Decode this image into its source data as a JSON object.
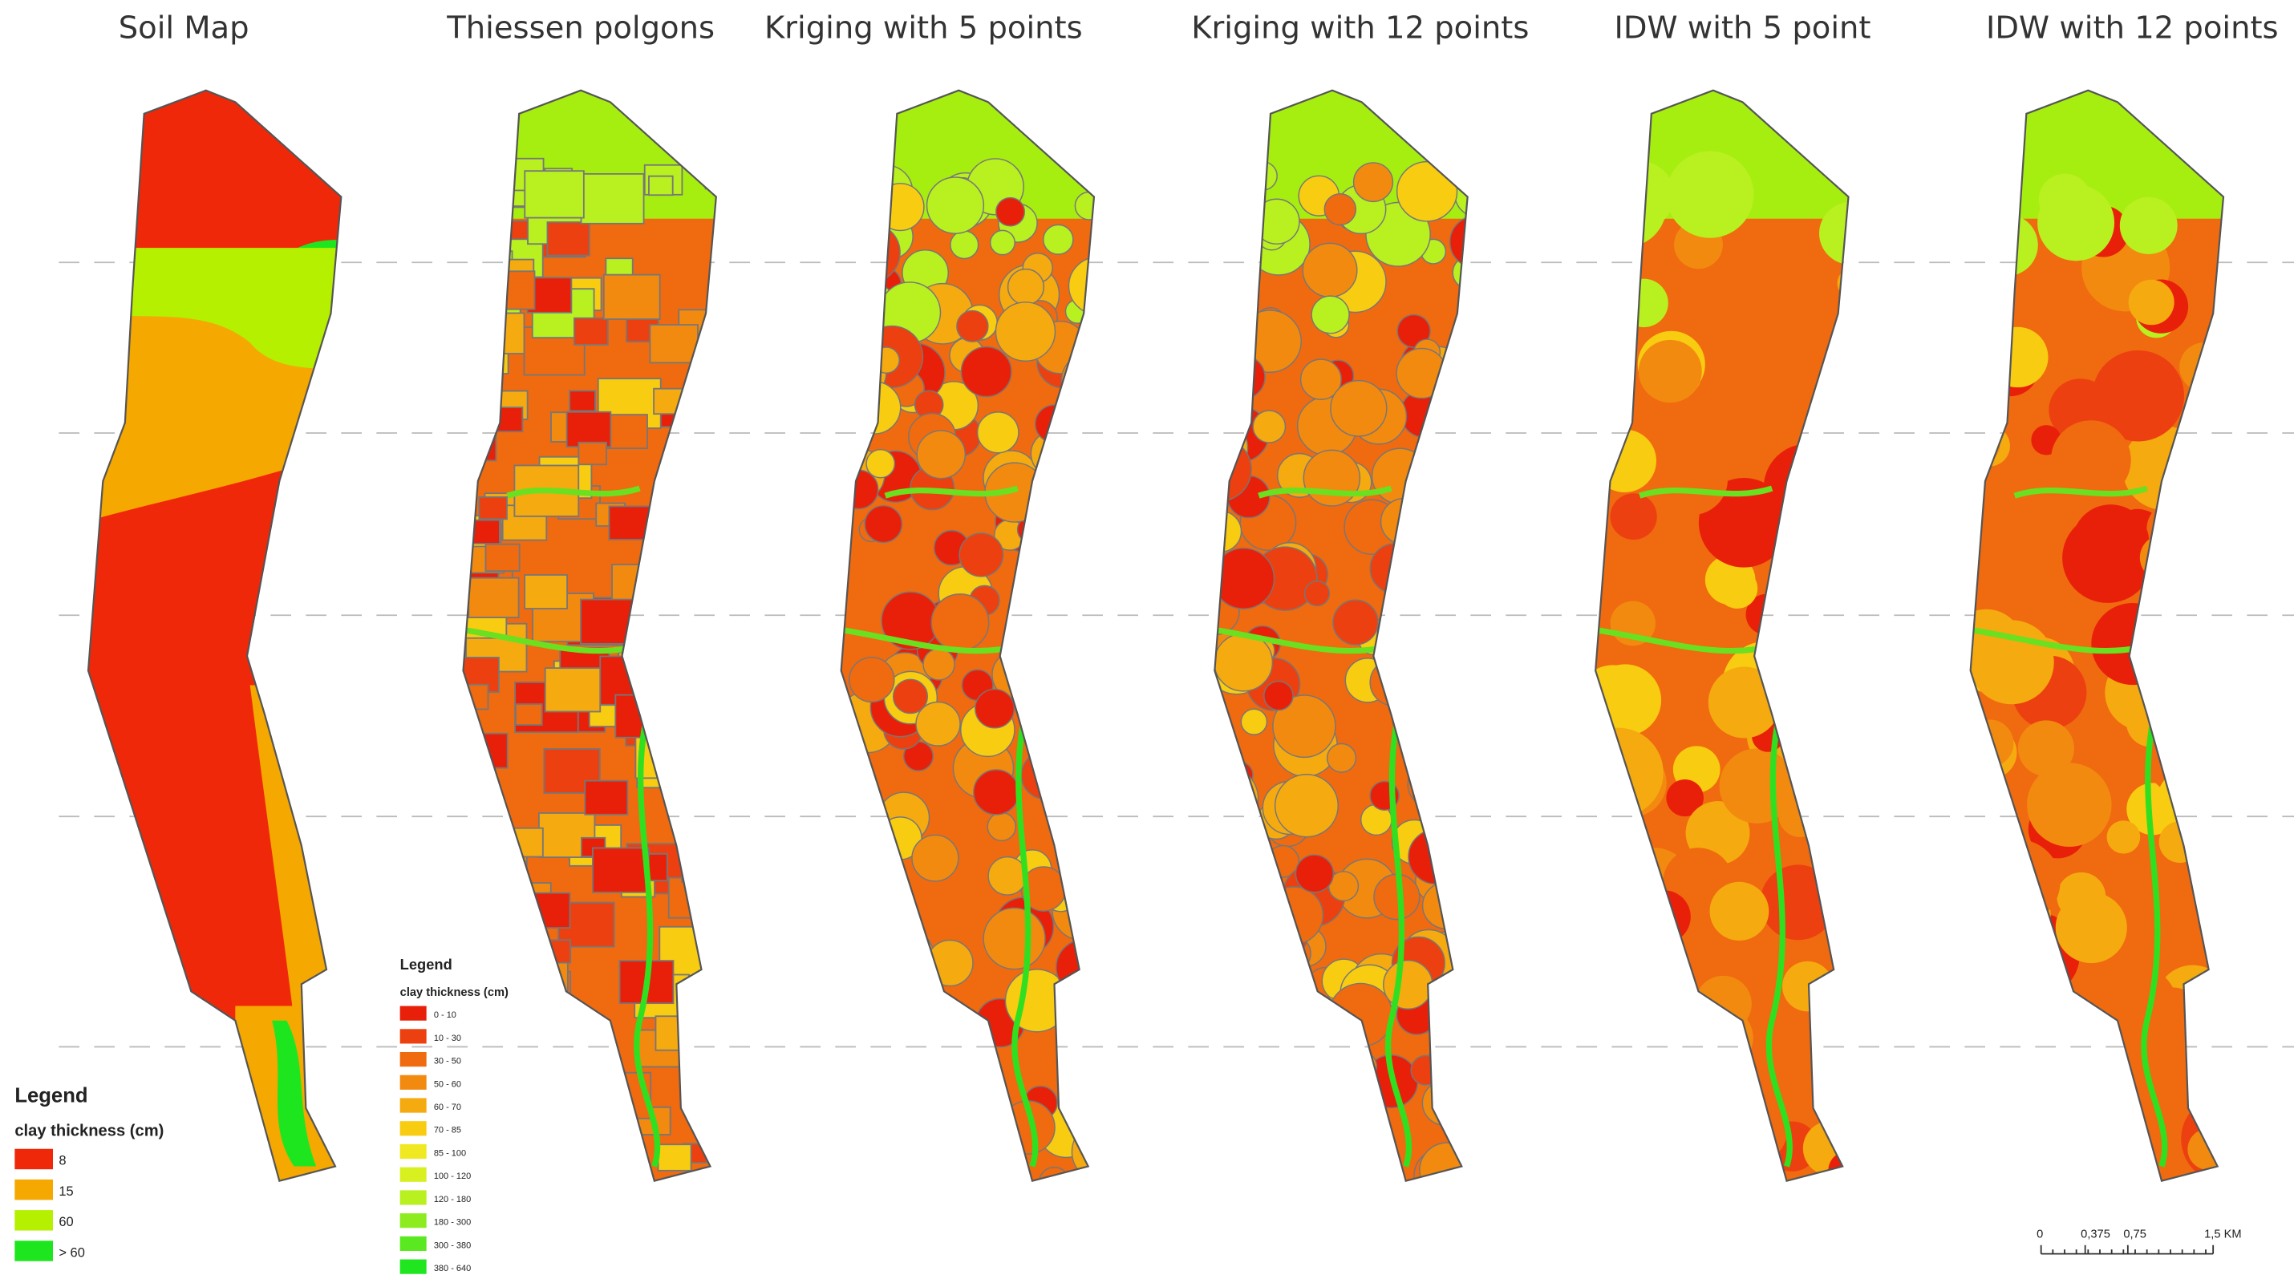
{
  "panels": [
    {
      "title": "Soil Map"
    },
    {
      "title": "Thiessen polgons"
    },
    {
      "title": "Kriging with 5 points"
    },
    {
      "title": "Kriging with 12 points"
    },
    {
      "title": "IDW with 5 point"
    },
    {
      "title": "IDW with 12 points"
    }
  ],
  "soil_legend": {
    "title": "Legend",
    "subtitle": "clay thickness (cm)",
    "items": [
      {
        "label": "8",
        "color": "#f0280a"
      },
      {
        "label": "15",
        "color": "#f5a800"
      },
      {
        "label": "60",
        "color": "#b5f000"
      },
      {
        "label": "> 60",
        "color": "#1ee61e"
      }
    ]
  },
  "class_legend": {
    "title": "Legend",
    "subtitle": "clay thickness (cm)",
    "items": [
      {
        "label": "0 - 10",
        "color": "#e8200a"
      },
      {
        "label": "10 - 30",
        "color": "#ec4010"
      },
      {
        "label": "30 - 50",
        "color": "#f06a10"
      },
      {
        "label": "50 - 60",
        "color": "#f28a10"
      },
      {
        "label": "60 - 70",
        "color": "#f5aa10"
      },
      {
        "label": "70 - 85",
        "color": "#f8cc10"
      },
      {
        "label": "85 - 100",
        "color": "#f0e820"
      },
      {
        "label": "100 - 120",
        "color": "#d8f020"
      },
      {
        "label": "120 - 180",
        "color": "#b8f020"
      },
      {
        "label": "180 - 300",
        "color": "#8cec20"
      },
      {
        "label": "300 - 380",
        "color": "#5ae820"
      },
      {
        "label": "380 - 640",
        "color": "#20e620"
      }
    ]
  },
  "scale_bar": {
    "labels": [
      "0",
      "0,375",
      "0,75",
      "1,5 KM"
    ]
  }
}
